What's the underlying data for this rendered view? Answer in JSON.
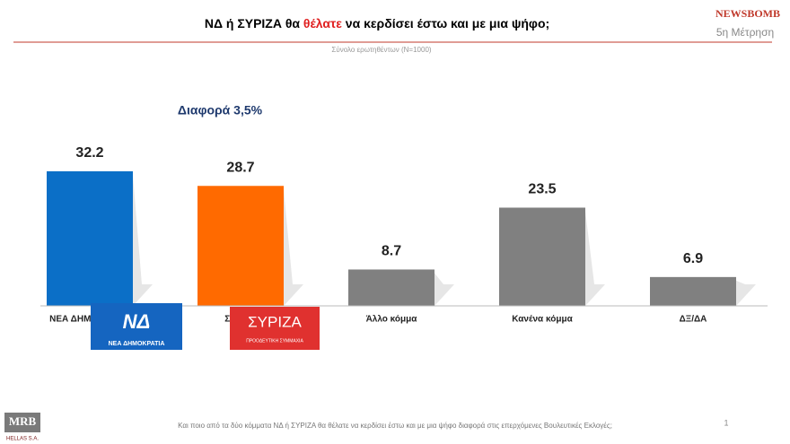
{
  "chart_data": {
    "type": "bar",
    "title_parts": [
      "ΝΔ  ή ΣΥΡΙΖΑ θα ",
      "θέλατε",
      " να κερδίσει έστω και με μια ψήφο;"
    ],
    "subtitle": "Σύνολο ερωτηθέντων (Ν=1000)",
    "annotation": "Διαφορά 3,5%",
    "categories": [
      "ΝΕΑ ΔΗΜΟΚΡΑΤΙΑ",
      "ΣΥΡΙΖΑ",
      "Άλλο κόμμα",
      "Κανένα κόμμα",
      "ΔΞ/ΔΑ"
    ],
    "values": [
      32.2,
      28.7,
      8.7,
      23.5,
      6.9
    ],
    "colors": [
      "#0b6fc7",
      "#ff6a00",
      "#808080",
      "#808080",
      "#808080"
    ],
    "footnote": "Και ποιο από τα δύο κόμματα ΝΔ ή ΣΥΡΙΖΑ θα θέλατε να κερδίσει έστω και με μια ψήφο διαφορά στις επερχόμενες Βουλευτικές Εκλογές;",
    "page_number": "1"
  },
  "branding": {
    "newsbomb": "NEWSBOMB",
    "wave": "5η Μέτρηση",
    "mrb": "MRB",
    "mrb_sub": "HELLAS S.A.",
    "nd_logo": "ΝΕΑ ΔΗΜΟΚΡΑΤΙΑ",
    "syriza_logo": "ΣΥΡΙΖΑ",
    "syriza_sub": "ΠΡΟΟΔΕΥΤΙΚΗ ΣΥΜΜΑΧΙΑ"
  }
}
